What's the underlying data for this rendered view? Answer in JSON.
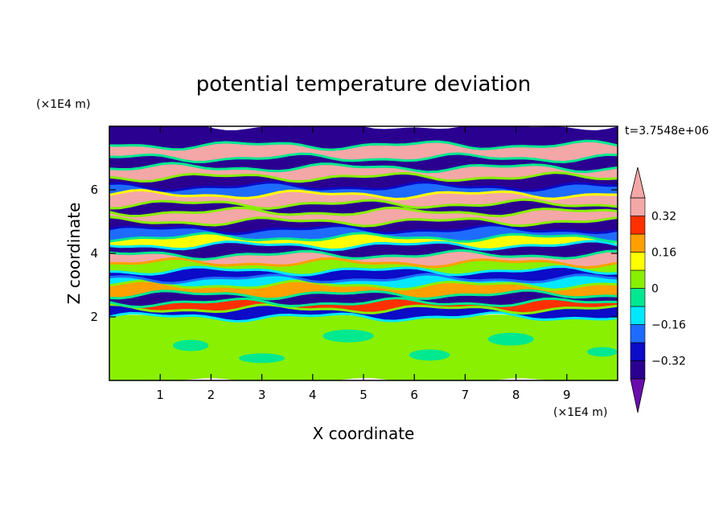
{
  "chart_data": {
    "type": "heatmap",
    "title": "potential temperature deviation",
    "xlabel": "X coordinate",
    "ylabel": "Z coordinate",
    "x_unit_label": "(×1E4 m)",
    "y_unit_label": "(×1E4 m)",
    "time_label": "t=3.7548e+06",
    "xlim": [
      0,
      10
    ],
    "ylim": [
      0,
      8
    ],
    "x_ticks": [
      1,
      2,
      3,
      4,
      5,
      6,
      7,
      8,
      9
    ],
    "y_ticks": [
      2,
      4,
      6
    ],
    "colorbar": {
      "levels": [
        -0.4,
        -0.32,
        -0.24,
        -0.16,
        -0.08,
        0,
        0.08,
        0.16,
        0.24,
        0.32,
        0.4
      ],
      "tick_values": [
        0.32,
        0.16,
        0,
        -0.16,
        -0.32
      ],
      "tick_labels": [
        "0.32",
        "0.16",
        "0",
        "−0.16",
        "−0.32"
      ],
      "colors": [
        "#6a0dad",
        "#2a0090",
        "#0b0bc8",
        "#1e6cff",
        "#00e8ff",
        "#00e890",
        "#88f000",
        "#ffff00",
        "#ffa000",
        "#ff3000",
        "#f4a7a7"
      ],
      "extend": "both"
    },
    "bands": [
      {
        "z0": 0.0,
        "z1": 2.0,
        "value": 0.04
      },
      {
        "z0": 2.0,
        "z1": 2.25,
        "value": -0.3
      },
      {
        "z0": 2.25,
        "z1": 2.45,
        "value": 0.3
      },
      {
        "z0": 2.45,
        "z1": 2.7,
        "value": -0.36
      },
      {
        "z0": 2.7,
        "z1": 3.0,
        "value": 0.2
      },
      {
        "z0": 3.0,
        "z1": 3.2,
        "value": -0.12
      },
      {
        "z0": 3.2,
        "z1": 3.45,
        "value": -0.3
      },
      {
        "z0": 3.45,
        "z1": 3.7,
        "value": 0.06
      },
      {
        "z0": 3.7,
        "z1": 3.95,
        "value": 0.36
      },
      {
        "z0": 3.95,
        "z1": 4.25,
        "value": -0.38
      },
      {
        "z0": 4.25,
        "z1": 4.5,
        "value": 0.12
      },
      {
        "z0": 4.5,
        "z1": 4.75,
        "value": -0.2
      },
      {
        "z0": 4.75,
        "z1": 5.0,
        "value": -0.38
      },
      {
        "z0": 5.0,
        "z1": 5.3,
        "value": 0.38
      },
      {
        "z0": 5.3,
        "z1": 5.55,
        "value": -0.38
      },
      {
        "z0": 5.55,
        "z1": 5.85,
        "value": 0.38
      },
      {
        "z0": 5.85,
        "z1": 6.1,
        "value": -0.2
      },
      {
        "z0": 6.1,
        "z1": 6.4,
        "value": -0.38
      },
      {
        "z0": 6.4,
        "z1": 6.7,
        "value": 0.38
      },
      {
        "z0": 6.7,
        "z1": 7.0,
        "value": -0.4
      },
      {
        "z0": 7.0,
        "z1": 7.4,
        "value": 0.38
      },
      {
        "z0": 7.4,
        "z1": 7.75,
        "value": -0.4
      },
      {
        "z0": 7.75,
        "z1": 8.0,
        "value": -0.4
      }
    ]
  }
}
